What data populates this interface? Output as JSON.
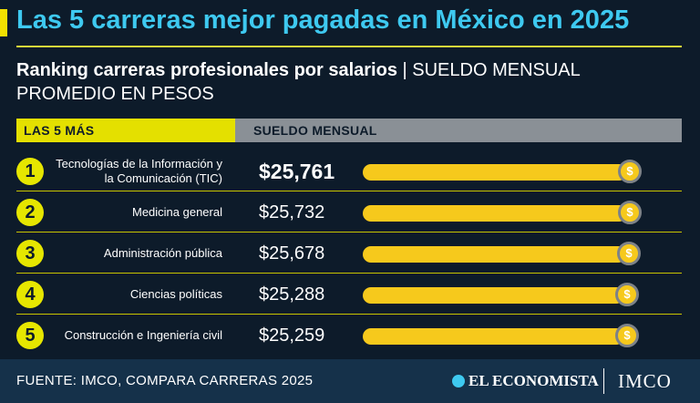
{
  "title": "Las 5 carreras mejor pagadas en México en 2025",
  "subtitle": {
    "bold": "Ranking carreras profesionales por salarios",
    "separator": " | ",
    "light": "SUELDO MENSUAL PROMEDIO EN PESOS"
  },
  "header": {
    "left": "LAS 5 MÁS",
    "right": "SUELDO MENSUAL"
  },
  "coin_symbol": "$",
  "colors": {
    "background": "#0d1b2a",
    "title": "#3ec9f0",
    "accent": "#e6e600",
    "bar": "#f6c91c",
    "header_gray": "#8a9096",
    "footer": "#15314a"
  },
  "chart_data": {
    "type": "bar",
    "orientation": "horizontal",
    "categories": [
      "Tecnologías de la Información y la Comunicación (TIC)",
      "Medicina general",
      "Administración pública",
      "Ciencias políticas",
      "Construcción e Ingeniería civil"
    ],
    "ranks": [
      "1",
      "2",
      "3",
      "4",
      "5"
    ],
    "values": [
      25761,
      25732,
      25678,
      25288,
      25259
    ],
    "value_labels": [
      "$25,761",
      "$25,732",
      "$25,678",
      "$25,288",
      "$25,259"
    ],
    "title": "Ranking carreras profesionales por salarios",
    "ylabel": "SUELDO MENSUAL",
    "grid": false
  },
  "footer": {
    "source": "FUENTE: IMCO, COMPARA CARRERAS 2025",
    "brand1": "EL ECONOMISTA",
    "brand2": "IMCO"
  }
}
